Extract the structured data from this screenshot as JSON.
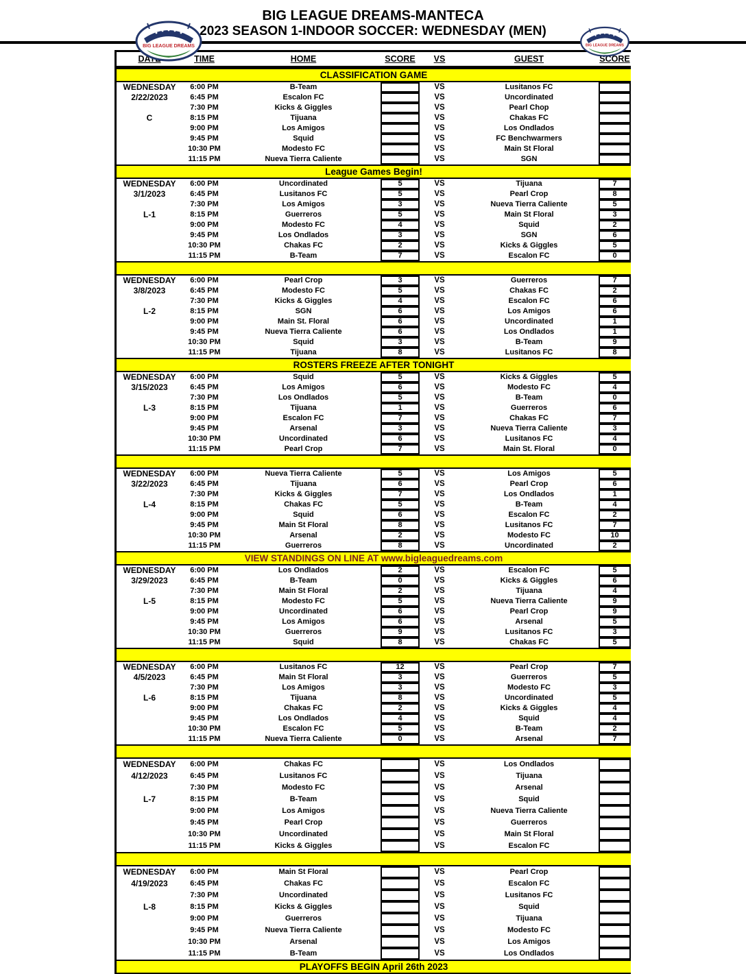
{
  "page": {
    "title_line1": "BIG LEAGUE DREAMS-MANTECA",
    "title_line2": "2023 SEASON 1-INDOOR SOCCER: WEDNESDAY (MEN)"
  },
  "colors": {
    "banner_bg": "#FFFF00",
    "banner_text": "#000000",
    "view_standings_text": "#7B1F1F",
    "logo_navy": "#23366B",
    "logo_red": "#C1272D",
    "logo_green": "#2E7D32"
  },
  "table": {
    "headers": [
      "DATE",
      "TIME",
      "HOME",
      "SCORE",
      "VS",
      "GUEST",
      "SCORE"
    ],
    "vs_label": "VS"
  },
  "schedule": {
    "top_banner": "CLASSIFICATION GAME",
    "sections": [
      {
        "day": "WEDNESDAY",
        "date": "2/22/2023",
        "code": "C",
        "tall": false,
        "games": [
          {
            "time": "6:00 PM",
            "home": "B-Team",
            "home_score": "",
            "guest": "Lusitanos FC",
            "guest_score": ""
          },
          {
            "time": "6:45 PM",
            "home": "Escalon FC",
            "home_score": "",
            "guest": "Uncordinated",
            "guest_score": ""
          },
          {
            "time": "7:30 PM",
            "home": "Kicks & Giggles",
            "home_score": "",
            "guest": "Pearl Chop",
            "guest_score": ""
          },
          {
            "time": "8:15 PM",
            "home": "Tijuana",
            "home_score": "",
            "guest": "Chakas FC",
            "guest_score": ""
          },
          {
            "time": "9:00 PM",
            "home": "Los Amigos",
            "home_score": "",
            "guest": "Los Ondlados",
            "guest_score": ""
          },
          {
            "time": "9:45 PM",
            "home": "Squid",
            "home_score": "",
            "guest": "FC Benchwarmers",
            "guest_score": ""
          },
          {
            "time": "10:30 PM",
            "home": "Modesto FC",
            "home_score": "",
            "guest": "Main St Floral",
            "guest_score": ""
          },
          {
            "time": "11:15 PM",
            "home": "Nueva Tierra Caliente",
            "home_score": "",
            "guest": "SGN",
            "guest_score": ""
          }
        ],
        "banner_after": {
          "text": "League Games Begin!",
          "style": "black"
        }
      },
      {
        "day": "WEDNESDAY",
        "date": "3/1/2023",
        "code": "L-1",
        "tall": false,
        "games": [
          {
            "time": "6:00 PM",
            "home": "Uncordinated",
            "home_score": "5",
            "guest": "Tijuana",
            "guest_score": "7"
          },
          {
            "time": "6:45 PM",
            "home": "Lusitanos FC",
            "home_score": "5",
            "guest": "Pearl Crop",
            "guest_score": "8"
          },
          {
            "time": "7:30 PM",
            "home": "Los Amigos",
            "home_score": "3",
            "guest": "Nueva Tierra Caliente",
            "guest_score": "5"
          },
          {
            "time": "8:15 PM",
            "home": "Guerreros",
            "home_score": "5",
            "guest": "Main St Floral",
            "guest_score": "3"
          },
          {
            "time": "9:00 PM",
            "home": "Modesto FC",
            "home_score": "4",
            "guest": "Squid",
            "guest_score": "2"
          },
          {
            "time": "9:45 PM",
            "home": "Los Ondlados",
            "home_score": "3",
            "guest": "SGN",
            "guest_score": "6"
          },
          {
            "time": "10:30 PM",
            "home": "Chakas FC",
            "home_score": "2",
            "guest": "Kicks & Giggles",
            "guest_score": "5"
          },
          {
            "time": "11:15 PM",
            "home": "B-Team",
            "home_score": "7",
            "guest": "Escalon FC",
            "guest_score": "0"
          }
        ],
        "banner_after": {
          "text": "",
          "style": "black"
        }
      },
      {
        "day": "WEDNESDAY",
        "date": "3/8/2023",
        "code": "L-2",
        "tall": false,
        "games": [
          {
            "time": "6:00 PM",
            "home": "Pearl Crop",
            "home_score": "3",
            "guest": "Guerreros",
            "guest_score": "7"
          },
          {
            "time": "6:45 PM",
            "home": "Modesto FC",
            "home_score": "5",
            "guest": "Chakas FC",
            "guest_score": "2"
          },
          {
            "time": "7:30 PM",
            "home": "Kicks & Giggles",
            "home_score": "4",
            "guest": "Escalon FC",
            "guest_score": "6"
          },
          {
            "time": "8:15 PM",
            "home": "SGN",
            "home_score": "6",
            "guest": "Los Amigos",
            "guest_score": "6"
          },
          {
            "time": "9:00 PM",
            "home": "Main St. Floral",
            "home_score": "6",
            "guest": "Uncordinated",
            "guest_score": "1"
          },
          {
            "time": "9:45 PM",
            "home": "Nueva Tierra Caliente",
            "home_score": "6",
            "guest": "Los Ondlados",
            "guest_score": "1"
          },
          {
            "time": "10:30 PM",
            "home": "Squid",
            "home_score": "3",
            "guest": "B-Team",
            "guest_score": "9"
          },
          {
            "time": "11:15 PM",
            "home": "Tijuana",
            "home_score": "8",
            "guest": "Lusitanos FC",
            "guest_score": "8"
          }
        ],
        "banner_after": {
          "text": "ROSTERS FREEZE AFTER TONIGHT",
          "style": "black"
        }
      },
      {
        "day": "WEDNESDAY",
        "date": "3/15/2023",
        "code": "L-3",
        "tall": false,
        "games": [
          {
            "time": "6:00 PM",
            "home": "Squid",
            "home_score": "5",
            "guest": "Kicks & Giggles",
            "guest_score": "5"
          },
          {
            "time": "6:45 PM",
            "home": "Los Amigos",
            "home_score": "6",
            "guest": "Modesto FC",
            "guest_score": "4"
          },
          {
            "time": "7:30 PM",
            "home": "Los Ondlados",
            "home_score": "5",
            "guest": "B-Team",
            "guest_score": "0"
          },
          {
            "time": "8:15 PM",
            "home": "Tijuana",
            "home_score": "1",
            "guest": "Guerreros",
            "guest_score": "6"
          },
          {
            "time": "9:00 PM",
            "home": "Escalon FC",
            "home_score": "7",
            "guest": "Chakas FC",
            "guest_score": "7"
          },
          {
            "time": "9:45 PM",
            "home": "Arsenal",
            "home_score": "3",
            "guest": "Nueva Tierra Caliente",
            "guest_score": "3"
          },
          {
            "time": "10:30 PM",
            "home": "Uncordinated",
            "home_score": "6",
            "guest": "Lusitanos FC",
            "guest_score": "4"
          },
          {
            "time": "11:15 PM",
            "home": "Pearl Crop",
            "home_score": "7",
            "guest": "Main St. Floral",
            "guest_score": "0"
          }
        ],
        "banner_after": {
          "text": "",
          "style": "black"
        }
      },
      {
        "day": "WEDNESDAY",
        "date": "3/22/2023",
        "code": "L-4",
        "tall": false,
        "games": [
          {
            "time": "6:00 PM",
            "home": "Nueva Tierra Caliente",
            "home_score": "5",
            "guest": "Los Amigos",
            "guest_score": "5"
          },
          {
            "time": "6:45 PM",
            "home": "Tijuana",
            "home_score": "6",
            "guest": "Pearl Crop",
            "guest_score": "6"
          },
          {
            "time": "7:30 PM",
            "home": "Kicks & Giggles",
            "home_score": "7",
            "guest": "Los Ondlados",
            "guest_score": "1"
          },
          {
            "time": "8:15 PM",
            "home": "Chakas FC",
            "home_score": "5",
            "guest": "B-Team",
            "guest_score": "4"
          },
          {
            "time": "9:00 PM",
            "home": "Squid",
            "home_score": "6",
            "guest": "Escalon FC",
            "guest_score": "2"
          },
          {
            "time": "9:45 PM",
            "home": "Main St Floral",
            "home_score": "8",
            "guest": "Lusitanos FC",
            "guest_score": "7"
          },
          {
            "time": "10:30 PM",
            "home": "Arsenal",
            "home_score": "2",
            "guest": "Modesto FC",
            "guest_score": "10"
          },
          {
            "time": "11:15 PM",
            "home": "Guerreros",
            "home_score": "8",
            "guest": "Uncordinated",
            "guest_score": "2"
          }
        ],
        "banner_after": {
          "text": "VIEW STANDINGS ON LINE AT www.bigleaguedreams.com",
          "style": "red"
        }
      },
      {
        "day": "WEDNESDAY",
        "date": "3/29/2023",
        "code": "L-5",
        "tall": false,
        "games": [
          {
            "time": "6:00 PM",
            "home": "Los Ondlados",
            "home_score": "2",
            "guest": "Escalon FC",
            "guest_score": "5"
          },
          {
            "time": "6:45 PM",
            "home": "B-Team",
            "home_score": "0",
            "guest": "Kicks & Giggles",
            "guest_score": "6"
          },
          {
            "time": "7:30 PM",
            "home": "Main St Floral",
            "home_score": "2",
            "guest": "Tijuana",
            "guest_score": "4"
          },
          {
            "time": "8:15 PM",
            "home": "Modesto FC",
            "home_score": "5",
            "guest": "Nueva Tierra Caliente",
            "guest_score": "9"
          },
          {
            "time": "9:00 PM",
            "home": "Uncordinated",
            "home_score": "6",
            "guest": "Pearl Crop",
            "guest_score": "9"
          },
          {
            "time": "9:45 PM",
            "home": "Los Amigos",
            "home_score": "6",
            "guest": "Arsenal",
            "guest_score": "5"
          },
          {
            "time": "10:30 PM",
            "home": "Guerreros",
            "home_score": "9",
            "guest": "Lusitanos FC",
            "guest_score": "3"
          },
          {
            "time": "11:15 PM",
            "home": "Squid",
            "home_score": "8",
            "guest": "Chakas FC",
            "guest_score": "5"
          }
        ],
        "banner_after": {
          "text": "",
          "style": "black"
        }
      },
      {
        "day": "WEDNESDAY",
        "date": "4/5/2023",
        "code": "L-6",
        "tall": false,
        "games": [
          {
            "time": "6:00 PM",
            "home": "Lusitanos FC",
            "home_score": "12",
            "guest": "Pearl Crop",
            "guest_score": "7"
          },
          {
            "time": "6:45 PM",
            "home": "Main St Floral",
            "home_score": "3",
            "guest": "Guerreros",
            "guest_score": "5"
          },
          {
            "time": "7:30 PM",
            "home": "Los Amigos",
            "home_score": "3",
            "guest": "Modesto FC",
            "guest_score": "3"
          },
          {
            "time": "8:15 PM",
            "home": "Tijuana",
            "home_score": "8",
            "guest": "Uncordinated",
            "guest_score": "5"
          },
          {
            "time": "9:00 PM",
            "home": "Chakas FC",
            "home_score": "2",
            "guest": "Kicks & Giggles",
            "guest_score": "4"
          },
          {
            "time": "9:45 PM",
            "home": "Los Ondlados",
            "home_score": "4",
            "guest": "Squid",
            "guest_score": "4"
          },
          {
            "time": "10:30 PM",
            "home": "Escalon FC",
            "home_score": "5",
            "guest": "B-Team",
            "guest_score": "2"
          },
          {
            "time": "11:15 PM",
            "home": "Nueva Tierra Caliente",
            "home_score": "0",
            "guest": "Arsenal",
            "guest_score": "7"
          }
        ],
        "banner_after": {
          "text": "",
          "style": "black"
        }
      },
      {
        "day": "WEDNESDAY",
        "date": "4/12/2023",
        "code": "L-7",
        "tall": true,
        "games": [
          {
            "time": "6:00 PM",
            "home": "Chakas FC",
            "home_score": "",
            "guest": "Los Ondlados",
            "guest_score": ""
          },
          {
            "time": "6:45 PM",
            "home": "Lusitanos FC",
            "home_score": "",
            "guest": "Tijuana",
            "guest_score": ""
          },
          {
            "time": "7:30 PM",
            "home": "Modesto FC",
            "home_score": "",
            "guest": "Arsenal",
            "guest_score": ""
          },
          {
            "time": "8:15 PM",
            "home": "B-Team",
            "home_score": "",
            "guest": "Squid",
            "guest_score": ""
          },
          {
            "time": "9:00 PM",
            "home": "Los Amigos",
            "home_score": "",
            "guest": "Nueva Tierra Caliente",
            "guest_score": ""
          },
          {
            "time": "9:45 PM",
            "home": "Pearl Crop",
            "home_score": "",
            "guest": "Guerreros",
            "guest_score": ""
          },
          {
            "time": "10:30 PM",
            "home": "Uncordinated",
            "home_score": "",
            "guest": "Main St Floral",
            "guest_score": ""
          },
          {
            "time": "11:15 PM",
            "home": "Kicks & Giggles",
            "home_score": "",
            "guest": "Escalon FC",
            "guest_score": ""
          }
        ],
        "banner_after": {
          "text": "",
          "style": "black"
        }
      },
      {
        "day": "WEDNESDAY",
        "date": "4/19/2023",
        "code": "L-8",
        "tall": true,
        "games": [
          {
            "time": "6:00 PM",
            "home": "Main St Floral",
            "home_score": "",
            "guest": "Pearl Crop",
            "guest_score": ""
          },
          {
            "time": "6:45 PM",
            "home": "Chakas FC",
            "home_score": "",
            "guest": "Escalon FC",
            "guest_score": ""
          },
          {
            "time": "7:30 PM",
            "home": "Uncordinated",
            "home_score": "",
            "guest": "Lusitanos FC",
            "guest_score": ""
          },
          {
            "time": "8:15 PM",
            "home": "Kicks & Giggles",
            "home_score": "",
            "guest": "Squid",
            "guest_score": ""
          },
          {
            "time": "9:00 PM",
            "home": "Guerreros",
            "home_score": "",
            "guest": "Tijuana",
            "guest_score": ""
          },
          {
            "time": "9:45 PM",
            "home": "Nueva Tierra Caliente",
            "home_score": "",
            "guest": "Modesto FC",
            "guest_score": ""
          },
          {
            "time": "10:30 PM",
            "home": "Arsenal",
            "home_score": "",
            "guest": "Los Amigos",
            "guest_score": ""
          },
          {
            "time": "11:15 PM",
            "home": "B-Team",
            "home_score": "",
            "guest": "Los Ondlados",
            "guest_score": ""
          }
        ],
        "banner_after": {
          "text": "PLAYOFFS BEGIN April 26th 2023",
          "style": "black"
        }
      }
    ]
  }
}
